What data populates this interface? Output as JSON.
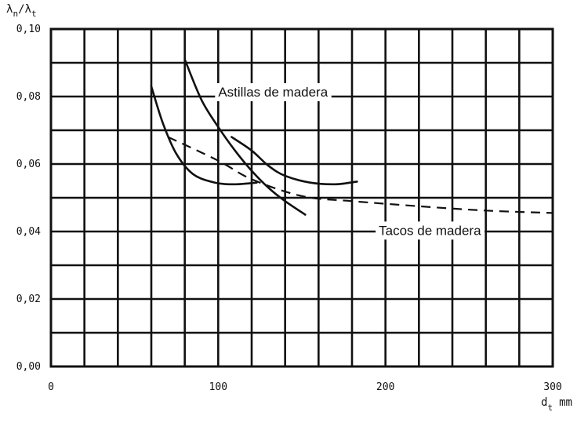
{
  "chart_data": {
    "type": "line",
    "xlim": [
      0,
      300
    ],
    "ylim": [
      0,
      0.1
    ],
    "x_ticks": [
      0,
      100,
      200,
      300
    ],
    "x_tick_labels": [
      "0",
      "100",
      "200",
      "300"
    ],
    "y_ticks": [
      0,
      0.02,
      0.04,
      0.06,
      0.08,
      0.1
    ],
    "y_tick_labels": [
      "0,00",
      "0,02",
      "0,04",
      "0,06",
      "0,08",
      "0,10"
    ],
    "x_grid_step": 20,
    "y_grid_step": 0.01,
    "grid": true,
    "xlabel": {
      "main": "d",
      "sub": "t",
      "unit": "mm"
    },
    "ylabel": {
      "a": "λ",
      "a_sub": "n",
      "sep": "/",
      "b": "λ",
      "b_sub": "t"
    },
    "annotations": [
      {
        "text": "Astillas de madera",
        "x": 100,
        "y": 0.08
      },
      {
        "text": "Tacos de madera",
        "x": 196,
        "y": 0.039
      }
    ],
    "series": [
      {
        "style": "solid",
        "points": [
          [
            60,
            0.083
          ],
          [
            67,
            0.072
          ],
          [
            75,
            0.063
          ],
          [
            85,
            0.057
          ],
          [
            98,
            0.0545
          ],
          [
            110,
            0.054
          ],
          [
            123,
            0.0545
          ]
        ]
      },
      {
        "style": "solid",
        "points": [
          [
            80,
            0.091
          ],
          [
            90,
            0.079
          ],
          [
            100,
            0.071
          ],
          [
            110,
            0.064
          ],
          [
            120,
            0.058
          ],
          [
            130,
            0.053
          ],
          [
            140,
            0.049
          ],
          [
            152,
            0.045
          ]
        ]
      },
      {
        "style": "solid",
        "points": [
          [
            108,
            0.068
          ],
          [
            120,
            0.064
          ],
          [
            130,
            0.0595
          ],
          [
            140,
            0.0565
          ],
          [
            155,
            0.0545
          ],
          [
            170,
            0.054
          ],
          [
            183,
            0.0548
          ]
        ]
      },
      {
        "style": "dashed",
        "points": [
          [
            70,
            0.068
          ],
          [
            100,
            0.061
          ],
          [
            120,
            0.0555
          ],
          [
            150,
            0.0505
          ],
          [
            180,
            0.049
          ],
          [
            220,
            0.0475
          ],
          [
            260,
            0.0462
          ],
          [
            300,
            0.0455
          ]
        ]
      }
    ]
  }
}
